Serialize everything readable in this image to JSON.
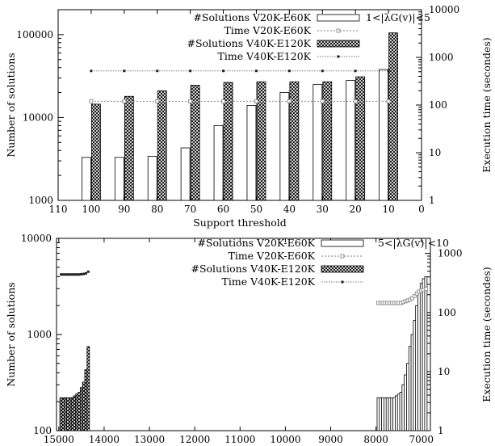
{
  "chart_data": [
    {
      "type": "bar",
      "panel": "top",
      "annotation": "1<|λG(v)|<5",
      "xlabel": "Support threshold",
      "ylabel": "Number of solutions",
      "y2label": "Execution time (secondes)",
      "x_ticks": [
        "110",
        "100",
        "90",
        "80",
        "70",
        "60",
        "50",
        "40",
        "30",
        "20",
        "10",
        "0"
      ],
      "xlim": [
        110,
        0
      ],
      "ylim": [
        1000,
        200000
      ],
      "ylog": true,
      "y_ticks": [
        "1000",
        "10000",
        "100000"
      ],
      "y2lim": [
        1,
        10000
      ],
      "y2log": true,
      "y2_ticks": [
        "1",
        "10",
        "100",
        "1000",
        "10000"
      ],
      "grid": false,
      "legend_position": "top-center",
      "x": [
        100,
        90,
        80,
        70,
        60,
        50,
        40,
        30,
        20,
        10
      ],
      "series": [
        {
          "name": "#Solutions V20K-E60K",
          "kind": "bar",
          "axis": "left",
          "pattern": "solid-white",
          "values": [
            3300,
            3300,
            3400,
            4300,
            8000,
            14000,
            20000,
            25000,
            28000,
            38000
          ]
        },
        {
          "name": "Time V20K-E60K",
          "kind": "line",
          "axis": "right",
          "marker": "square",
          "values": [
            120,
            120,
            120,
            120,
            120,
            120,
            120,
            120,
            120,
            120
          ]
        },
        {
          "name": "#Solutions V40K-E120K",
          "kind": "bar",
          "axis": "left",
          "pattern": "crosshatch",
          "values": [
            14500,
            18000,
            21000,
            24500,
            26500,
            27000,
            27000,
            27000,
            31000,
            105000
          ]
        },
        {
          "name": "Time V40K-E120K",
          "kind": "line",
          "axis": "right",
          "marker": "dot",
          "values": [
            520,
            520,
            520,
            520,
            520,
            520,
            520,
            520,
            520,
            520
          ]
        }
      ]
    },
    {
      "type": "bar",
      "panel": "bottom",
      "annotation": "5<|λG(v)|<10",
      "xlabel": "Support threshold",
      "ylabel": "Number of solutions",
      "y2label": "Execution time (secondes)",
      "x_ticks": [
        "15000",
        "14000",
        "13000",
        "12000",
        "11000",
        "10000",
        "9000",
        "8000",
        "7000"
      ],
      "xlim": [
        15050,
        6800
      ],
      "ylim": [
        100,
        10000
      ],
      "ylog": true,
      "y_ticks": [
        "100",
        "1000",
        "10000"
      ],
      "y2lim": [
        1,
        1800
      ],
      "y2log": true,
      "y2_ticks": [
        "1",
        "10",
        "100",
        "1000"
      ],
      "grid": false,
      "legend_position": "top-center",
      "series": [
        {
          "name": "#Solutions V20K-E60K",
          "kind": "bar",
          "axis": "left",
          "pattern": "solid-white",
          "x": [
            7950,
            7900,
            7850,
            7800,
            7750,
            7700,
            7650,
            7600,
            7550,
            7500,
            7450,
            7400,
            7350,
            7300,
            7250,
            7200,
            7150,
            7100,
            7050,
            7000,
            6950,
            6900
          ],
          "values": [
            220,
            220,
            220,
            220,
            220,
            220,
            220,
            220,
            230,
            240,
            250,
            300,
            380,
            500,
            750,
            1000,
            1400,
            2000,
            2800,
            3400,
            3800,
            4000
          ]
        },
        {
          "name": "Time V20K-E60K",
          "kind": "line",
          "axis": "right",
          "marker": "square",
          "x": [
            7950,
            7900,
            7850,
            7800,
            7750,
            7700,
            7650,
            7600,
            7550,
            7500,
            7450,
            7400,
            7350,
            7300,
            7250,
            7200,
            7150,
            7100,
            7050,
            7000,
            6950,
            6900
          ],
          "values": [
            145,
            145,
            145,
            145,
            145,
            145,
            145,
            145,
            145,
            145,
            145,
            150,
            155,
            160,
            165,
            175,
            190,
            210,
            225,
            235,
            240,
            250
          ]
        },
        {
          "name": "#Solutions V40K-E120K",
          "kind": "bar",
          "axis": "left",
          "pattern": "crosshatch",
          "x": [
            14950,
            14900,
            14850,
            14800,
            14750,
            14700,
            14650,
            14600,
            14550,
            14500,
            14450,
            14400,
            14350
          ],
          "values": [
            220,
            220,
            220,
            220,
            220,
            220,
            230,
            240,
            250,
            280,
            320,
            430,
            750
          ]
        },
        {
          "name": "Time V40K-E120K",
          "kind": "line",
          "axis": "right",
          "marker": "dot",
          "x": [
            14950,
            14900,
            14850,
            14800,
            14750,
            14700,
            14650,
            14600,
            14550,
            14500,
            14450,
            14400,
            14350
          ],
          "values": [
            440,
            440,
            440,
            440,
            440,
            440,
            440,
            440,
            440,
            445,
            450,
            460,
            490
          ]
        }
      ]
    }
  ]
}
